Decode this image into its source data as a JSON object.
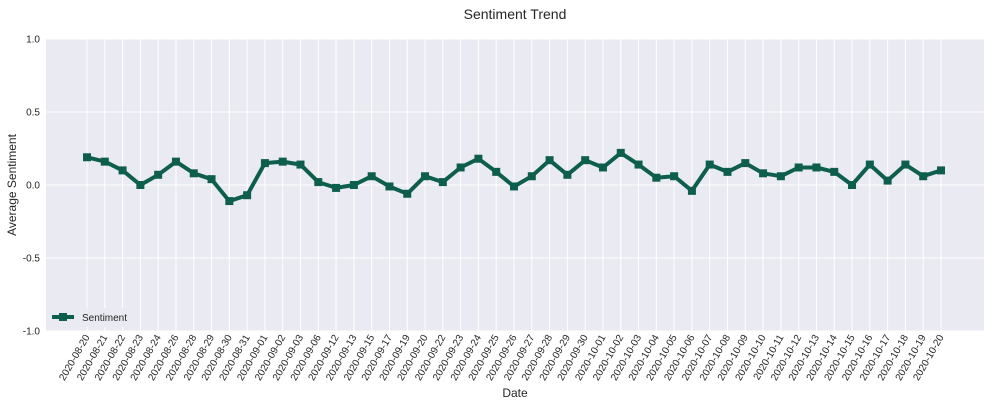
{
  "chart_data": {
    "type": "line",
    "title": "Sentiment Trend",
    "xlabel": "Date",
    "ylabel": "Average Sentiment",
    "ylim": [
      -1.0,
      1.0
    ],
    "yticks": [
      "-1.0",
      "-0.5",
      "0.0",
      "0.5",
      "1.0"
    ],
    "grid": true,
    "legend_placement": "lower-left",
    "categories": [
      "2020-08-20",
      "2020-08-21",
      "2020-08-22",
      "2020-08-23",
      "2020-08-24",
      "2020-08-26",
      "2020-08-28",
      "2020-08-29",
      "2020-08-30",
      "2020-08-31",
      "2020-09-01",
      "2020-09-02",
      "2020-09-03",
      "2020-09-06",
      "2020-09-12",
      "2020-09-13",
      "2020-09-15",
      "2020-09-17",
      "2020-09-19",
      "2020-09-20",
      "2020-09-22",
      "2020-09-23",
      "2020-09-24",
      "2020-09-25",
      "2020-09-26",
      "2020-09-27",
      "2020-09-28",
      "2020-09-29",
      "2020-09-30",
      "2020-10-01",
      "2020-10-02",
      "2020-10-03",
      "2020-10-04",
      "2020-10-05",
      "2020-10-06",
      "2020-10-07",
      "2020-10-08",
      "2020-10-09",
      "2020-10-10",
      "2020-10-11",
      "2020-10-12",
      "2020-10-13",
      "2020-10-14",
      "2020-10-15",
      "2020-10-16",
      "2020-10-17",
      "2020-10-18",
      "2020-10-19",
      "2020-10-20"
    ],
    "series": [
      {
        "name": "Sentiment",
        "color": "#0e5e4e",
        "values": [
          0.19,
          0.16,
          0.1,
          0.0,
          0.07,
          0.16,
          0.08,
          0.04,
          -0.11,
          -0.07,
          0.15,
          0.16,
          0.14,
          0.02,
          -0.02,
          0.0,
          0.06,
          -0.01,
          -0.06,
          0.06,
          0.02,
          0.12,
          0.18,
          0.09,
          -0.01,
          0.06,
          0.17,
          0.07,
          0.17,
          0.12,
          0.22,
          0.14,
          0.05,
          0.06,
          -0.04,
          0.14,
          0.09,
          0.15,
          0.08,
          0.06,
          0.12,
          0.12,
          0.09,
          0.0,
          0.14,
          0.03,
          0.14,
          0.06,
          0.1
        ]
      }
    ]
  }
}
